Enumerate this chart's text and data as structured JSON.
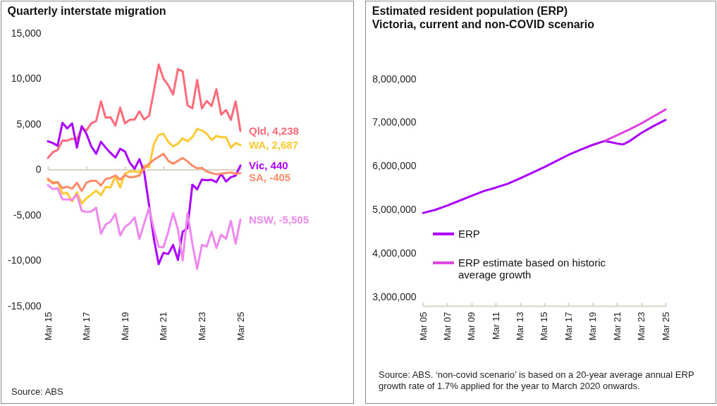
{
  "chart_data": [
    {
      "type": "line",
      "title": "Quarterly interstate migration",
      "x": [
        "2015-03",
        "2015-06",
        "2015-09",
        "2015-12",
        "2016-03",
        "2016-06",
        "2016-09",
        "2016-12",
        "2017-03",
        "2017-06",
        "2017-09",
        "2017-12",
        "2018-03",
        "2018-06",
        "2018-09",
        "2018-12",
        "2019-03",
        "2019-06",
        "2019-09",
        "2019-12",
        "2020-03",
        "2020-06",
        "2020-09",
        "2020-12",
        "2021-03",
        "2021-06",
        "2021-09",
        "2021-12",
        "2022-03",
        "2022-06",
        "2022-09",
        "2022-12",
        "2023-03",
        "2023-06",
        "2023-09",
        "2023-12",
        "2024-03",
        "2024-06",
        "2024-09",
        "2024-12",
        "2025-03"
      ],
      "series": [
        {
          "color": "#ff6b7a",
          "values": [
            1270,
            1900,
            2160,
            3170,
            3170,
            3400,
            3300,
            4570,
            4300,
            5080,
            5330,
            7500,
            5700,
            5760,
            4820,
            6800,
            5080,
            5460,
            5500,
            6400,
            5500,
            5900,
            8630,
            11550,
            10000,
            9260,
            8250,
            11040,
            10800,
            7050,
            6730,
            9850,
            6730,
            7540,
            6980,
            8830,
            6040,
            6550,
            5460,
            7500,
            4238
          ],
          "value_labels": [
            null,
            null,
            null,
            null,
            null,
            null,
            null,
            null,
            null,
            null,
            null,
            null,
            null,
            null,
            null,
            null,
            null,
            null,
            null,
            null,
            null,
            null,
            null,
            null,
            null,
            null,
            null,
            null,
            null,
            null,
            null,
            null,
            null,
            null,
            null,
            null,
            null,
            null,
            null,
            null,
            "Qld, 4,238"
          ]
        },
        {
          "color": "#ffc933",
          "values": [
            -1180,
            -1370,
            -1390,
            -2630,
            -2580,
            -3500,
            -2500,
            -3740,
            -3160,
            -2760,
            -2320,
            -2820,
            -1920,
            -1970,
            -740,
            -1970,
            -470,
            -210,
            -210,
            -320,
            460,
            250,
            2790,
            3810,
            3930,
            3050,
            2540,
            2840,
            3430,
            3100,
            3550,
            4440,
            4310,
            3930,
            3250,
            3680,
            3550,
            3550,
            2410,
            2920,
            2687
          ],
          "value_labels": [
            null,
            null,
            null,
            null,
            null,
            null,
            null,
            null,
            null,
            null,
            null,
            null,
            null,
            null,
            null,
            null,
            null,
            null,
            null,
            null,
            null,
            null,
            null,
            null,
            null,
            null,
            null,
            null,
            null,
            null,
            null,
            null,
            null,
            null,
            null,
            null,
            null,
            null,
            null,
            null,
            "WA, 2,687"
          ]
        },
        {
          "color": "#aa00ff",
          "values": [
            3100,
            2920,
            2610,
            5130,
            4520,
            5080,
            2410,
            4770,
            3930,
            2540,
            1730,
            3050,
            2410,
            1830,
            1320,
            2280,
            1980,
            760,
            80,
            1140,
            -300,
            -3900,
            -7630,
            -10400,
            -9160,
            -9290,
            -8290,
            -9950,
            -6840,
            -6450,
            -1660,
            -2180,
            -1100,
            -1180,
            -1130,
            -1390,
            -470,
            -1320,
            -840,
            -660,
            440
          ],
          "value_labels": [
            null,
            null,
            null,
            null,
            null,
            null,
            null,
            null,
            null,
            null,
            null,
            null,
            null,
            null,
            null,
            null,
            null,
            null,
            null,
            null,
            null,
            null,
            null,
            null,
            null,
            null,
            null,
            null,
            null,
            null,
            null,
            null,
            null,
            null,
            null,
            null,
            null,
            null,
            null,
            null,
            "Vic, 440"
          ]
        },
        {
          "color": "#ff8c69",
          "values": [
            -1000,
            -1530,
            -1390,
            -2030,
            -1890,
            -2110,
            -1450,
            -2370,
            -1450,
            -1240,
            -1240,
            -1760,
            -1050,
            -920,
            -660,
            -1110,
            -610,
            -870,
            -790,
            -660,
            130,
            630,
            1070,
            1400,
            1730,
            960,
            630,
            960,
            1270,
            890,
            430,
            130,
            180,
            -210,
            -390,
            -530,
            -470,
            -390,
            -320,
            -470,
            -405
          ],
          "value_labels": [
            null,
            null,
            null,
            null,
            null,
            null,
            null,
            null,
            null,
            null,
            null,
            null,
            null,
            null,
            null,
            null,
            null,
            null,
            null,
            null,
            null,
            null,
            null,
            null,
            null,
            null,
            null,
            null,
            null,
            null,
            null,
            null,
            null,
            null,
            null,
            null,
            null,
            null,
            null,
            null,
            "SA, -405"
          ]
        },
        {
          "color": "#ee88ee",
          "values": [
            -1710,
            -2160,
            -2050,
            -3290,
            -3290,
            -3340,
            -2760,
            -4530,
            -4680,
            -4610,
            -4210,
            -7050,
            -6050,
            -5740,
            -4870,
            -7240,
            -6320,
            -5920,
            -5260,
            -7630,
            -5920,
            -4210,
            -6580,
            -8500,
            -8550,
            -6840,
            -4790,
            -6580,
            -10000,
            -4790,
            -8160,
            -10920,
            -8290,
            -8470,
            -6840,
            -8630,
            -7160,
            -7630,
            -5660,
            -8160,
            -5505
          ],
          "value_labels": [
            null,
            null,
            null,
            null,
            null,
            null,
            null,
            null,
            null,
            null,
            null,
            null,
            null,
            null,
            null,
            null,
            null,
            null,
            null,
            null,
            null,
            null,
            null,
            null,
            null,
            null,
            null,
            null,
            null,
            null,
            null,
            null,
            null,
            null,
            null,
            null,
            null,
            null,
            null,
            null,
            "NSW, -5,505"
          ]
        }
      ],
      "xlim": [
        "2015-03",
        "2025-03"
      ],
      "xticks": [
        {
          "value": "2015-03",
          "label": "Mar 15"
        },
        {
          "value": "2017-03",
          "label": "Mar 17"
        },
        {
          "value": "2019-03",
          "label": "Mar 19"
        },
        {
          "value": "2021-03",
          "label": "Mar 21"
        },
        {
          "value": "2023-03",
          "label": "Mar 23"
        },
        {
          "value": "2025-03",
          "label": "Mar 25"
        }
      ],
      "ylim": [
        -15000,
        15000
      ],
      "yticks": [
        {
          "value": -15000,
          "label": "-15,000"
        },
        {
          "value": -10000,
          "label": "-10,000"
        },
        {
          "value": -5000,
          "label": "-5,000"
        },
        0,
        {
          "value": 5000,
          "label": "5,000"
        },
        {
          "value": 10000,
          "label": "10,000"
        },
        {
          "value": 15000,
          "label": "15,000"
        }
      ],
      "annotations": [
        "Source: ABS"
      ]
    },
    {
      "type": "line",
      "title": "Estimated resident population (ERP)",
      "subtitle": "Victoria, current and non-COVID scenario",
      "series": [
        {
          "name": "ERP",
          "color": "#aa00ff",
          "x": [
            "2005-03",
            "2006-03",
            "2007-03",
            "2008-03",
            "2009-03",
            "2010-03",
            "2011-03",
            "2012-03",
            "2013-03",
            "2014-03",
            "2015-03",
            "2016-03",
            "2017-03",
            "2018-03",
            "2019-03",
            "2020-03",
            "2020-09",
            "2021-03",
            "2021-09",
            "2022-03",
            "2023-03",
            "2024-03",
            "2025-03"
          ],
          "values": [
            4930000,
            5000000,
            5100000,
            5210000,
            5320000,
            5430000,
            5510000,
            5600000,
            5720000,
            5850000,
            5980000,
            6120000,
            6260000,
            6380000,
            6490000,
            6580000,
            6550000,
            6520000,
            6500000,
            6570000,
            6760000,
            6920000,
            7060000
          ]
        },
        {
          "name": "ERP estimate based on historic average growth",
          "color": "#dd44dd",
          "x": [
            "2020-03",
            "2021-03",
            "2022-03",
            "2023-03",
            "2024-03",
            "2025-03"
          ],
          "values": [
            6580000,
            6710000,
            6840000,
            6980000,
            7140000,
            7300000
          ]
        }
      ],
      "xlim": [
        "2005-03",
        "2025-03"
      ],
      "xticks": [
        {
          "value": "2005-03",
          "label": "Mar 05"
        },
        {
          "value": "2007-03",
          "label": "Mar 07"
        },
        {
          "value": "2009-03",
          "label": "Mar 09"
        },
        {
          "value": "2011-03",
          "label": "Mar 11"
        },
        {
          "value": "2013-03",
          "label": "Mar 13"
        },
        {
          "value": "2015-03",
          "label": "Mar 15"
        },
        {
          "value": "2017-03",
          "label": "Mar 17"
        },
        {
          "value": "2019-03",
          "label": "Mar 19"
        },
        {
          "value": "2021-03",
          "label": "Mar 21"
        },
        {
          "value": "2023-03",
          "label": "Mar 23"
        },
        {
          "value": "2025-03",
          "label": "Mar 25"
        }
      ],
      "ylim": [
        2800000,
        8000000
      ],
      "yticks": [
        {
          "value": 3000000,
          "label": "3,000,000"
        },
        {
          "value": 4000000,
          "label": "4,000,000"
        },
        {
          "value": 5000000,
          "label": "5,000,000"
        },
        {
          "value": 6000000,
          "label": "6,000,000"
        },
        {
          "value": 7000000,
          "label": "7,000,000"
        },
        {
          "value": 8000000,
          "label": "8,000,000"
        }
      ],
      "legend": "left",
      "annotations": [
        "Source: ABS. ‘non-covid scenario’ is based on a 20-year average annual ERP growth rate of 1.7% applied for the year to March 2020 onwards."
      ]
    }
  ]
}
